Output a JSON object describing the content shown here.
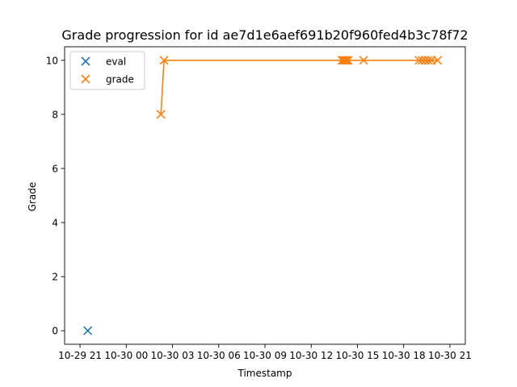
{
  "chart_data": {
    "type": "scatter",
    "title": "Grade progression for id ae7d1e6aef691b20f960fed4b3c78f72",
    "xlabel": "Timestamp",
    "ylabel": "Grade",
    "xlim": [
      "2024-10-29 20:00",
      "2024-10-30 22:00"
    ],
    "ylim": [
      -0.5,
      10.5
    ],
    "x_ticks": [
      {
        "value": "2024-10-29 21:00",
        "label": "10-29 21"
      },
      {
        "value": "2024-10-30 00:00",
        "label": "10-30 00"
      },
      {
        "value": "2024-10-30 03:00",
        "label": "10-30 03"
      },
      {
        "value": "2024-10-30 06:00",
        "label": "10-30 06"
      },
      {
        "value": "2024-10-30 09:00",
        "label": "10-30 09"
      },
      {
        "value": "2024-10-30 12:00",
        "label": "10-30 12"
      },
      {
        "value": "2024-10-30 15:00",
        "label": "10-30 15"
      },
      {
        "value": "2024-10-30 18:00",
        "label": "10-30 18"
      },
      {
        "value": "2024-10-30 21:00",
        "label": "10-30 21"
      }
    ],
    "y_ticks": [
      0,
      2,
      4,
      6,
      8,
      10
    ],
    "grid": false,
    "legend_position": "top-left",
    "series": [
      {
        "name": "eval",
        "color": "#1f77b4",
        "marker": "x",
        "line": false,
        "points": [
          {
            "x": "2024-10-29 21:30",
            "y": 0
          }
        ]
      },
      {
        "name": "grade",
        "color": "#ff7f0e",
        "marker": "x",
        "line": true,
        "points": [
          {
            "x": "2024-10-30 02:15",
            "y": 8
          },
          {
            "x": "2024-10-30 02:27",
            "y": 10
          },
          {
            "x": "2024-10-30 14:00",
            "y": 10
          },
          {
            "x": "2024-10-30 14:06",
            "y": 10
          },
          {
            "x": "2024-10-30 14:12",
            "y": 10
          },
          {
            "x": "2024-10-30 14:18",
            "y": 10
          },
          {
            "x": "2024-10-30 14:24",
            "y": 10
          },
          {
            "x": "2024-10-30 15:24",
            "y": 10
          },
          {
            "x": "2024-10-30 19:00",
            "y": 10
          },
          {
            "x": "2024-10-30 19:12",
            "y": 10
          },
          {
            "x": "2024-10-30 19:24",
            "y": 10
          },
          {
            "x": "2024-10-30 19:36",
            "y": 10
          },
          {
            "x": "2024-10-30 19:48",
            "y": 10
          },
          {
            "x": "2024-10-30 20:12",
            "y": 10
          }
        ]
      }
    ]
  }
}
